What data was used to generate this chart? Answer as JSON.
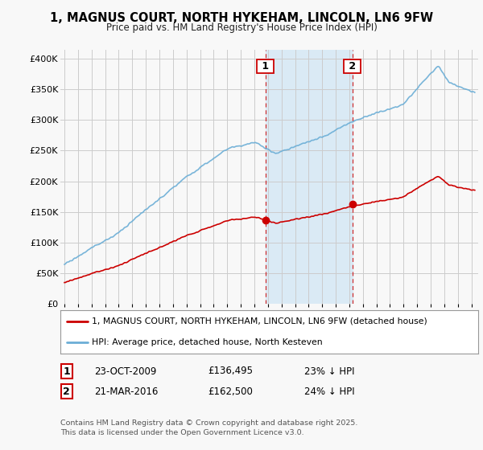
{
  "title": "1, MAGNUS COURT, NORTH HYKEHAM, LINCOLN, LN6 9FW",
  "subtitle": "Price paid vs. HM Land Registry's House Price Index (HPI)",
  "ylabel_ticks": [
    "£0",
    "£50K",
    "£100K",
    "£150K",
    "£200K",
    "£250K",
    "£300K",
    "£350K",
    "£400K"
  ],
  "ytick_values": [
    0,
    50000,
    100000,
    150000,
    200000,
    250000,
    300000,
    350000,
    400000
  ],
  "ylim": [
    0,
    415000
  ],
  "xlim_start": 1994.7,
  "xlim_end": 2025.5,
  "purchase1_x": 2009.81,
  "purchase1_y": 136495,
  "purchase2_x": 2016.22,
  "purchase2_y": 162500,
  "shade_color": "#daeaf5",
  "legend_line1": "1, MAGNUS COURT, NORTH HYKEHAM, LINCOLN, LN6 9FW (detached house)",
  "legend_line2": "HPI: Average price, detached house, North Kesteven",
  "table_row1": [
    "1",
    "23-OCT-2009",
    "£136,495",
    "23% ↓ HPI"
  ],
  "table_row2": [
    "2",
    "21-MAR-2016",
    "£162,500",
    "24% ↓ HPI"
  ],
  "footer": "Contains HM Land Registry data © Crown copyright and database right 2025.\nThis data is licensed under the Open Government Licence v3.0.",
  "hpi_color": "#6baed6",
  "price_color": "#cc0000",
  "grid_color": "#cccccc",
  "bg_color": "#f8f8f8"
}
